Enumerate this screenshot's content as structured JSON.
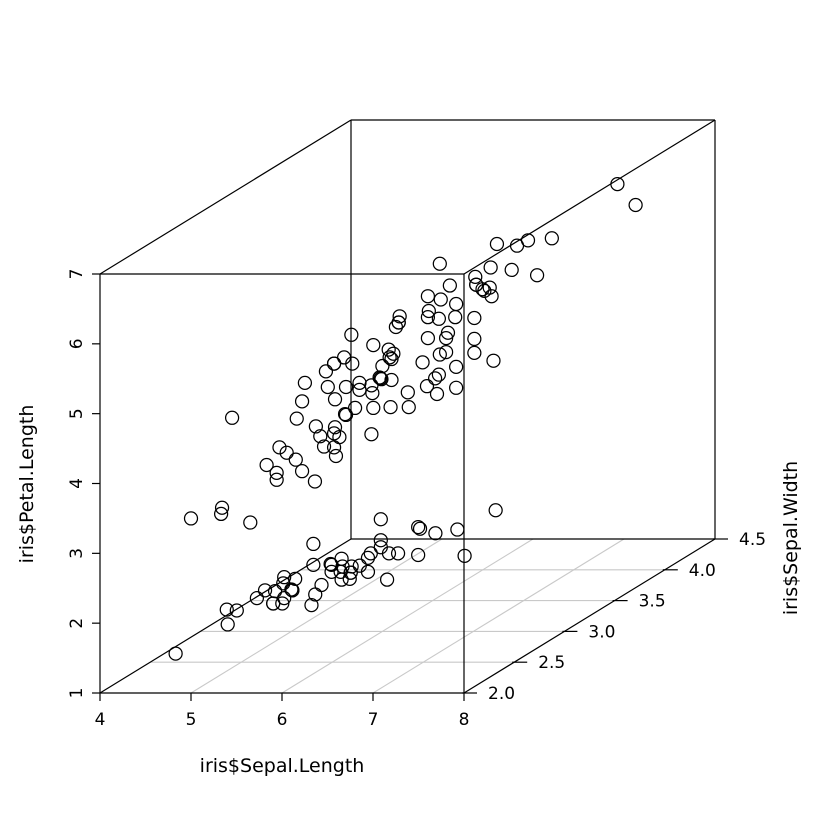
{
  "figure": {
    "background": "#ffffff",
    "box_color": "#000000",
    "grid_color": "#c9c9c9",
    "point_color": "#000000"
  },
  "chart_data": {
    "type": "scatter3d",
    "title": "",
    "xlabel": "iris$Sepal.Length",
    "ylabel": "iris$Sepal.Width",
    "zlabel": "iris$Petal.Length",
    "xlim": [
      4,
      8
    ],
    "ylim": [
      2.0,
      4.5
    ],
    "zlim": [
      1,
      7
    ],
    "xticks": {
      "values": [
        4,
        5,
        6,
        7,
        8
      ],
      "labels": [
        "4",
        "5",
        "6",
        "7",
        "8"
      ]
    },
    "yticks": {
      "values": [
        2.0,
        2.5,
        3.0,
        3.5,
        4.0,
        4.5
      ],
      "labels": [
        "2.0",
        "2.5",
        "3.0",
        "3.5",
        "4.0",
        "4.5"
      ]
    },
    "zticks": {
      "values": [
        1,
        2,
        3,
        4,
        5,
        6,
        7
      ],
      "labels": [
        "1",
        "2",
        "3",
        "4",
        "5",
        "6",
        "7"
      ]
    },
    "grid": true,
    "legend": "none",
    "marker": {
      "shape": "open-circle",
      "radius": 6.5,
      "stroke_width": 1.25
    },
    "points": {
      "sepal_length": [
        5.1,
        4.9,
        4.7,
        4.6,
        5.0,
        5.4,
        4.6,
        5.0,
        4.4,
        4.9,
        5.4,
        4.8,
        4.8,
        4.3,
        5.8,
        5.7,
        5.4,
        5.1,
        5.7,
        5.1,
        5.4,
        5.1,
        4.6,
        5.1,
        4.8,
        5.0,
        5.0,
        5.2,
        5.2,
        4.7,
        4.8,
        5.4,
        5.2,
        5.5,
        4.9,
        5.0,
        5.5,
        4.9,
        4.4,
        5.1,
        5.0,
        4.5,
        4.4,
        5.0,
        5.1,
        4.8,
        5.1,
        4.6,
        5.3,
        5.0,
        7.0,
        6.4,
        6.9,
        5.5,
        6.5,
        5.7,
        6.3,
        4.9,
        6.6,
        5.2,
        5.0,
        5.9,
        6.0,
        6.1,
        5.6,
        6.7,
        5.6,
        5.8,
        6.2,
        5.6,
        5.9,
        6.1,
        6.3,
        6.1,
        6.4,
        6.6,
        6.8,
        6.7,
        6.0,
        5.7,
        5.5,
        5.5,
        5.8,
        6.0,
        5.4,
        6.0,
        6.7,
        6.3,
        5.6,
        5.5,
        5.5,
        6.1,
        5.8,
        5.0,
        5.6,
        5.7,
        5.7,
        6.2,
        5.1,
        5.7,
        6.3,
        5.8,
        7.1,
        6.3,
        6.5,
        7.6,
        4.9,
        7.3,
        6.7,
        7.2,
        6.5,
        6.4,
        6.8,
        5.7,
        5.8,
        6.4,
        6.5,
        7.7,
        7.7,
        6.0,
        6.9,
        5.6,
        7.7,
        6.3,
        6.7,
        7.2,
        6.2,
        6.1,
        6.4,
        7.2,
        7.4,
        7.9,
        6.4,
        6.3,
        6.1,
        7.7,
        6.3,
        6.4,
        6.0,
        6.9,
        6.7,
        6.9,
        5.8,
        6.8,
        6.7,
        6.7,
        6.3,
        6.5,
        6.2,
        5.9
      ],
      "sepal_width": [
        3.5,
        3.0,
        3.2,
        3.1,
        3.6,
        3.9,
        3.4,
        3.4,
        2.9,
        3.1,
        3.7,
        3.4,
        3.0,
        3.0,
        4.0,
        4.4,
        3.9,
        3.5,
        3.8,
        3.8,
        3.4,
        3.7,
        3.6,
        3.3,
        3.4,
        3.0,
        3.4,
        3.5,
        3.4,
        3.2,
        3.1,
        3.4,
        4.1,
        4.2,
        3.1,
        3.2,
        3.5,
        3.6,
        3.0,
        3.4,
        3.5,
        2.3,
        3.2,
        3.5,
        3.8,
        3.0,
        3.8,
        3.2,
        3.7,
        3.3,
        3.2,
        3.2,
        3.1,
        2.3,
        2.8,
        2.8,
        3.3,
        2.4,
        2.9,
        2.7,
        2.0,
        3.0,
        2.2,
        2.9,
        2.9,
        3.1,
        3.0,
        2.7,
        2.2,
        2.5,
        3.2,
        2.8,
        2.5,
        2.8,
        2.9,
        3.0,
        2.8,
        3.0,
        2.9,
        2.6,
        2.4,
        2.4,
        2.7,
        2.7,
        3.0,
        3.4,
        3.1,
        2.3,
        3.0,
        2.5,
        2.6,
        3.0,
        2.6,
        2.3,
        2.7,
        3.0,
        2.9,
        2.9,
        2.5,
        2.8,
        3.3,
        2.7,
        3.0,
        2.9,
        3.0,
        3.0,
        2.5,
        2.9,
        2.5,
        3.6,
        3.2,
        2.7,
        3.0,
        2.5,
        2.8,
        3.2,
        3.0,
        3.8,
        2.6,
        2.2,
        3.2,
        2.8,
        2.8,
        2.7,
        3.3,
        3.2,
        2.8,
        3.0,
        2.8,
        3.0,
        2.8,
        3.8,
        2.8,
        2.8,
        2.6,
        3.0,
        3.4,
        3.1,
        3.0,
        3.1,
        3.1,
        3.1,
        2.7,
        3.2,
        3.3,
        3.0,
        2.5,
        3.0,
        3.4,
        3.0
      ],
      "petal_length": [
        1.4,
        1.4,
        1.3,
        1.5,
        1.4,
        1.7,
        1.4,
        1.5,
        1.4,
        1.5,
        1.5,
        1.6,
        1.4,
        1.1,
        1.2,
        1.5,
        1.3,
        1.4,
        1.7,
        1.5,
        1.7,
        1.5,
        1.0,
        1.7,
        1.9,
        1.6,
        1.6,
        1.5,
        1.4,
        1.6,
        1.6,
        1.5,
        1.5,
        1.4,
        1.5,
        1.2,
        1.3,
        1.4,
        1.3,
        1.5,
        1.3,
        1.3,
        1.3,
        1.6,
        1.9,
        1.4,
        1.6,
        1.4,
        1.5,
        1.4,
        4.7,
        4.5,
        4.9,
        4.0,
        4.6,
        4.5,
        4.7,
        3.3,
        4.6,
        3.9,
        3.5,
        4.2,
        4.0,
        4.7,
        3.6,
        4.4,
        4.5,
        4.1,
        4.5,
        3.9,
        4.8,
        4.0,
        4.9,
        4.7,
        4.3,
        4.4,
        4.8,
        5.0,
        4.5,
        3.5,
        3.8,
        3.7,
        3.9,
        5.1,
        4.5,
        4.5,
        4.7,
        4.4,
        4.1,
        4.0,
        4.4,
        4.6,
        4.0,
        3.3,
        4.2,
        4.2,
        4.2,
        4.3,
        3.0,
        4.1,
        6.0,
        5.1,
        5.9,
        5.6,
        5.8,
        6.6,
        4.5,
        6.3,
        5.8,
        6.1,
        5.1,
        5.3,
        5.5,
        5.0,
        5.1,
        5.3,
        5.5,
        6.7,
        6.9,
        5.0,
        5.7,
        4.9,
        6.7,
        4.9,
        5.7,
        6.0,
        4.8,
        4.9,
        5.6,
        5.8,
        6.1,
        6.4,
        5.6,
        5.1,
        5.6,
        6.1,
        5.6,
        5.5,
        4.8,
        5.4,
        5.6,
        5.1,
        5.1,
        5.9,
        5.7,
        5.2,
        5.0,
        5.2,
        5.4,
        5.1
      ]
    }
  }
}
